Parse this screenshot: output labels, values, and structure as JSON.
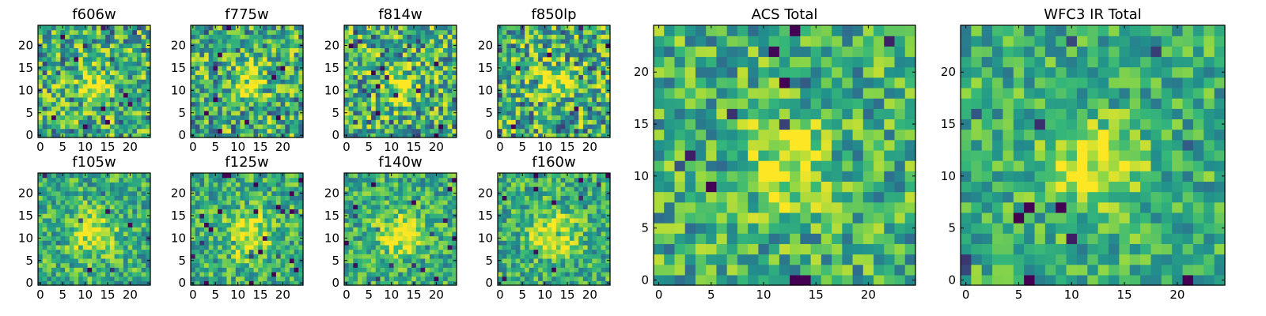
{
  "chart_data": [
    {
      "type": "heatmap",
      "title": "f606w",
      "ylim": [
        0,
        24
      ],
      "xticks": [
        "0",
        "5",
        "10",
        "15",
        "20"
      ],
      "yticks": [
        "0",
        "5",
        "10",
        "15",
        "20"
      ],
      "peak": [
        12,
        11
      ],
      "peak_width": 2.4,
      "noise": 0.42,
      "seed": 11
    },
    {
      "type": "heatmap",
      "title": "f775w",
      "ylim": [
        0,
        24
      ],
      "xticks": [
        "0",
        "5",
        "10",
        "15",
        "20"
      ],
      "yticks": [
        "0",
        "5",
        "10",
        "15",
        "20"
      ],
      "peak": [
        12,
        12
      ],
      "peak_width": 2.6,
      "noise": 0.42,
      "seed": 23
    },
    {
      "type": "heatmap",
      "title": "f814w",
      "ylim": [
        0,
        24
      ],
      "xticks": [
        "0",
        "5",
        "10",
        "15",
        "20"
      ],
      "yticks": [
        "0",
        "5",
        "10",
        "15",
        "20"
      ],
      "peak": [
        12,
        11
      ],
      "peak_width": 2.6,
      "noise": 0.44,
      "seed": 37
    },
    {
      "type": "heatmap",
      "title": "f850lp",
      "ylim": [
        0,
        24
      ],
      "xticks": [
        "0",
        "5",
        "10",
        "15",
        "20"
      ],
      "yticks": [
        "0",
        "5",
        "10",
        "15",
        "20"
      ],
      "peak": [
        12,
        12
      ],
      "peak_width": 2.6,
      "noise": 0.44,
      "seed": 41
    },
    {
      "type": "heatmap",
      "title": "f105w",
      "ylim": [
        0,
        24
      ],
      "xticks": [
        "0",
        "5",
        "10",
        "15",
        "20"
      ],
      "yticks": [
        "0",
        "5",
        "10",
        "15",
        "20"
      ],
      "peak": [
        12,
        11
      ],
      "peak_width": 3.4,
      "noise": 0.3,
      "seed": 53
    },
    {
      "type": "heatmap",
      "title": "f125w",
      "ylim": [
        0,
        24
      ],
      "xticks": [
        "0",
        "5",
        "10",
        "15",
        "20"
      ],
      "yticks": [
        "0",
        "5",
        "10",
        "15",
        "20"
      ],
      "peak": [
        12,
        11
      ],
      "peak_width": 3.4,
      "noise": 0.3,
      "seed": 67
    },
    {
      "type": "heatmap",
      "title": "f140w",
      "ylim": [
        0,
        24
      ],
      "xticks": [
        "0",
        "5",
        "10",
        "15",
        "20"
      ],
      "yticks": [
        "0",
        "5",
        "10",
        "15",
        "20"
      ],
      "peak": [
        12,
        11
      ],
      "peak_width": 3.4,
      "noise": 0.3,
      "seed": 71
    },
    {
      "type": "heatmap",
      "title": "f160w",
      "ylim": [
        0,
        24
      ],
      "xticks": [
        "0",
        "5",
        "10",
        "15",
        "20"
      ],
      "yticks": [
        "0",
        "5",
        "10",
        "15",
        "20"
      ],
      "peak": [
        12,
        11
      ],
      "peak_width": 3.4,
      "noise": 0.3,
      "seed": 89
    },
    {
      "type": "heatmap",
      "title": "ACS Total",
      "ylim": [
        0,
        24
      ],
      "xticks": [
        "0",
        "5",
        "10",
        "15",
        "20"
      ],
      "yticks": [
        "0",
        "5",
        "10",
        "15",
        "20"
      ],
      "peak": [
        12,
        11
      ],
      "peak_width": 2.8,
      "noise": 0.34,
      "seed": 97
    },
    {
      "type": "heatmap",
      "title": "WFC3 IR Total",
      "ylim": [
        0,
        24
      ],
      "xticks": [
        "0",
        "5",
        "10",
        "15",
        "20"
      ],
      "yticks": [
        "0",
        "5",
        "10",
        "15",
        "20"
      ],
      "peak": [
        12,
        11
      ],
      "peak_width": 3.0,
      "noise": 0.28,
      "seed": 101
    }
  ],
  "colormap": [
    "#440154",
    "#31688e",
    "#21918c",
    "#35b779",
    "#90d743",
    "#fde725"
  ]
}
